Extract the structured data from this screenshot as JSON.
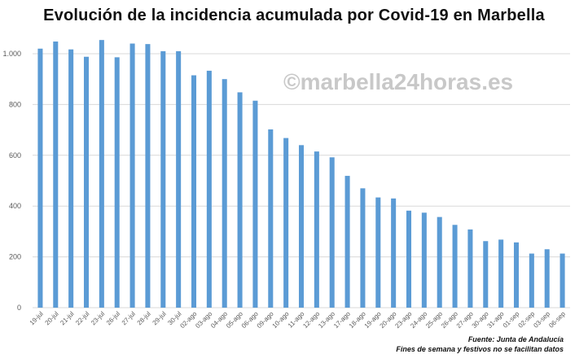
{
  "title": "Evolución de la incidencia acumulada por Covid-19 en Marbella",
  "watermark": "©marbella24horas.es",
  "footer": {
    "source": "Fuente: Junta de Andalucía",
    "note": "Fines de semana y festivos no se facilitan datos"
  },
  "colors": {
    "bar": "#5b9bd5",
    "grid": "#d9d9d9",
    "axis_text": "#595959"
  },
  "chart_data": {
    "type": "bar",
    "title": "Evolución de la incidencia acumulada por Covid-19 en Marbella",
    "xlabel": "",
    "ylabel": "",
    "ylim": [
      0,
      1000
    ],
    "yticks": [
      0,
      200,
      400,
      600,
      800,
      1000
    ],
    "ytick_labels": [
      "0",
      "200",
      "400",
      "600",
      "800",
      "1.000"
    ],
    "grid": true,
    "legend": "none",
    "categories": [
      "19-jul",
      "20-jul",
      "21-jul",
      "22-jul",
      "23-jul",
      "26-jul",
      "27-jul",
      "28-jul",
      "29-jul",
      "30-jul",
      "02-ago",
      "03-ago",
      "04-ago",
      "05-ago",
      "06-ago",
      "09-ago",
      "10-ago",
      "11-ago",
      "12-ago",
      "13-ago",
      "17-ago",
      "18-ago",
      "19-ago",
      "20-ago",
      "23-ago",
      "24-ago",
      "25-ago",
      "26-ago",
      "27-ago",
      "30-ago",
      "31-ago",
      "01-sep",
      "02-sep",
      "03-sep",
      "06-sep"
    ],
    "values": [
      1020,
      1048,
      1017,
      988,
      1054,
      986,
      1040,
      1038,
      1010,
      1010,
      915,
      933,
      900,
      848,
      815,
      702,
      668,
      640,
      615,
      592,
      519,
      470,
      434,
      430,
      382,
      374,
      357,
      326,
      308,
      262,
      268,
      257,
      213,
      230,
      213
    ]
  }
}
